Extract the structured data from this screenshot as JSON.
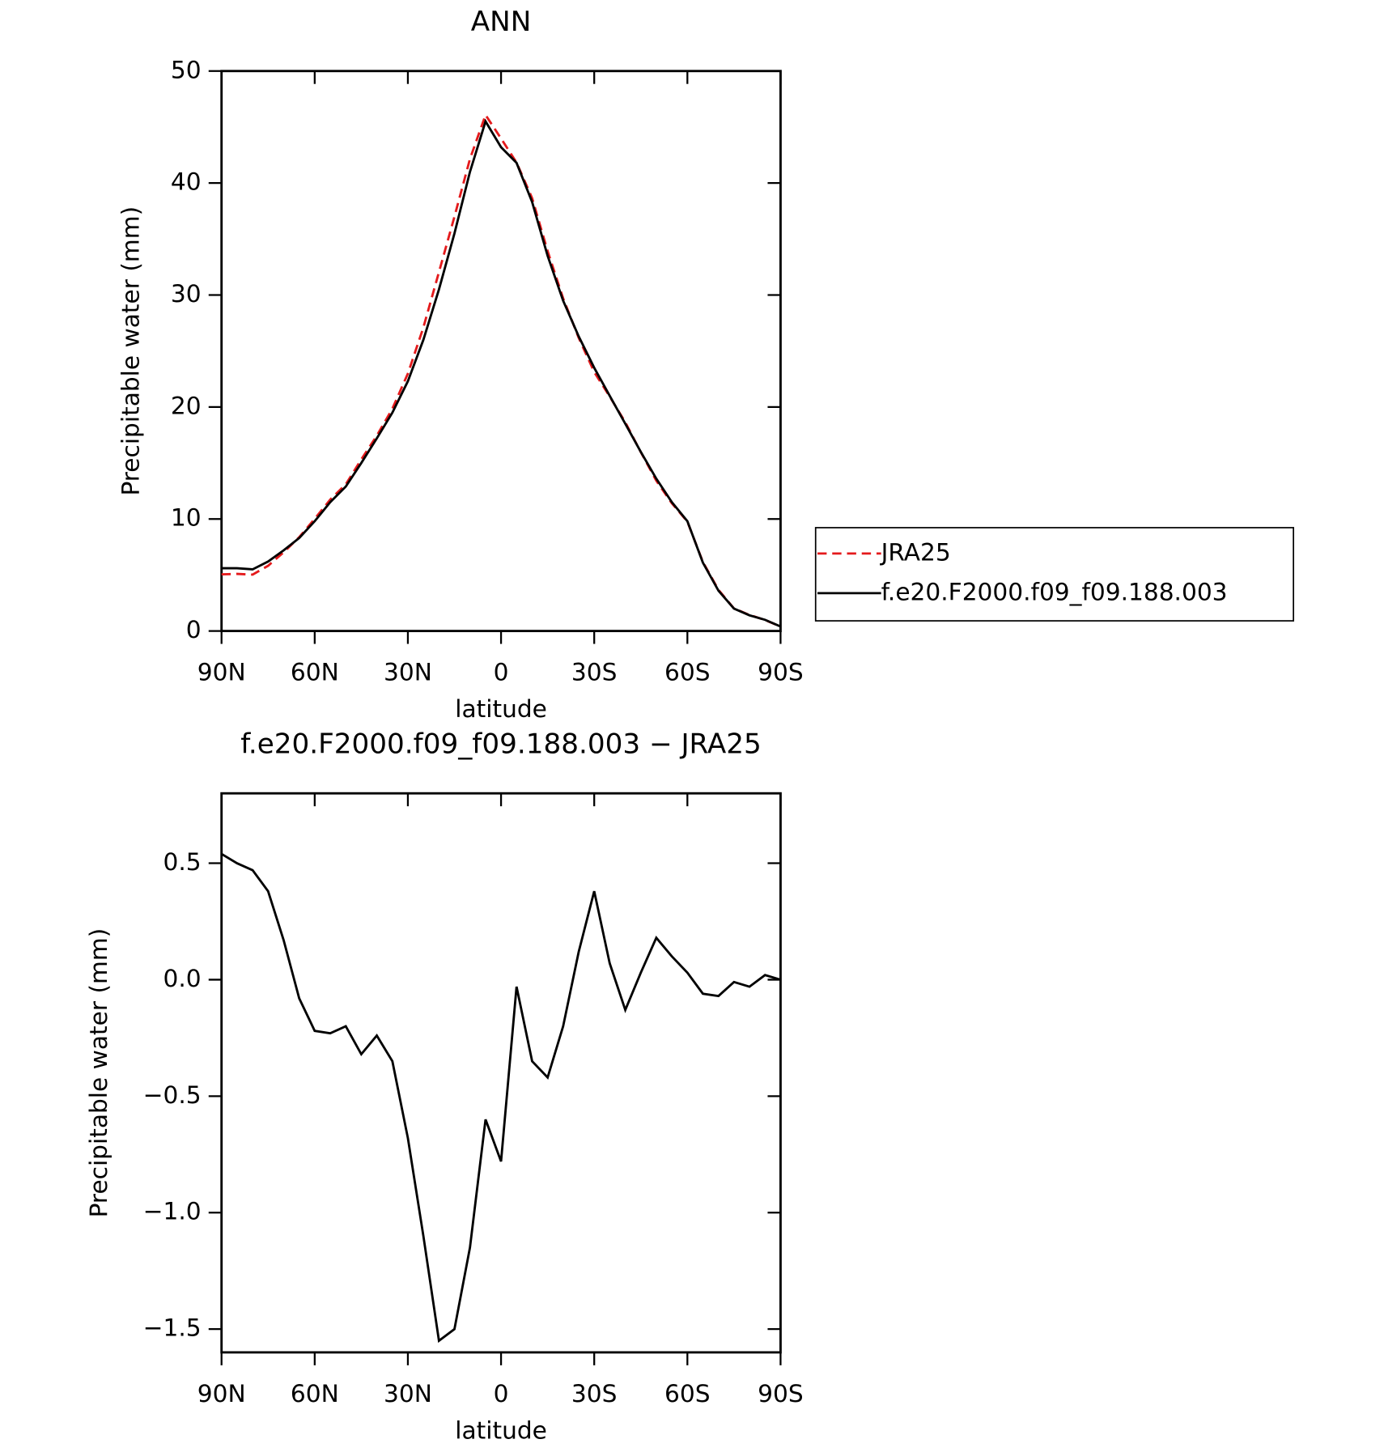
{
  "chart_data": [
    {
      "type": "line",
      "title": "ANN",
      "xlabel": "latitude",
      "ylabel": "Precipitable water (mm)",
      "x": [
        90,
        85,
        80,
        75,
        70,
        65,
        60,
        55,
        50,
        45,
        40,
        35,
        30,
        25,
        20,
        15,
        10,
        5,
        0,
        -5,
        -10,
        -15,
        -20,
        -25,
        -30,
        -35,
        -40,
        -45,
        -50,
        -55,
        -60,
        -65,
        -70,
        -75,
        -80,
        -85,
        -90
      ],
      "xlim": [
        90,
        -90
      ],
      "xticks": [
        {
          "value": 90,
          "label": "90N"
        },
        {
          "value": 60,
          "label": "60N"
        },
        {
          "value": 30,
          "label": "30N"
        },
        0,
        {
          "value": -30,
          "label": "30S"
        },
        {
          "value": -60,
          "label": "60S"
        },
        {
          "value": -90,
          "label": "90S"
        }
      ],
      "ylim": [
        0,
        50
      ],
      "yticks": [
        0,
        10,
        20,
        30,
        40,
        50
      ],
      "legend": "right",
      "series": [
        {
          "name": "JRA25",
          "color": "#e41a1c",
          "style": "dashed",
          "values": [
            5.06,
            5.1,
            5.03,
            5.82,
            7.03,
            8.38,
            10.02,
            11.73,
            13.1,
            15.32,
            17.44,
            19.85,
            22.98,
            27.1,
            32.05,
            37.0,
            42.15,
            46.08,
            43.98,
            41.83,
            38.65,
            33.92,
            29.7,
            26.18,
            23.12,
            20.93,
            18.63,
            15.97,
            13.42,
            11.4,
            9.77,
            6.16,
            3.67,
            2.01,
            1.43,
            0.98,
            0.4
          ]
        },
        {
          "name": "f.e20.F2000.f09_f09.188.003",
          "color": "#000000",
          "style": "solid",
          "values": [
            5.6,
            5.6,
            5.5,
            6.2,
            7.2,
            8.3,
            9.8,
            11.5,
            12.9,
            15,
            17.2,
            19.5,
            22.3,
            26.0,
            30.5,
            35.5,
            41,
            45.5,
            43.2,
            41.8,
            38.3,
            33.5,
            29.5,
            26.3,
            23.5,
            21,
            18.5,
            16,
            13.6,
            11.5,
            9.8,
            6.1,
            3.6,
            2.0,
            1.4,
            1.0,
            0.4
          ]
        }
      ]
    },
    {
      "type": "line",
      "title": "f.e20.F2000.f09_f09.188.003 − JRA25",
      "xlabel": "latitude",
      "ylabel": "Precipitable water (mm)",
      "x": [
        90,
        85,
        80,
        75,
        70,
        65,
        60,
        55,
        50,
        45,
        40,
        35,
        30,
        25,
        20,
        15,
        10,
        5,
        0,
        -5,
        -10,
        -15,
        -20,
        -25,
        -30,
        -35,
        -40,
        -45,
        -50,
        -55,
        -60,
        -65,
        -70,
        -75,
        -80,
        -85,
        -90
      ],
      "xlim": [
        90,
        -90
      ],
      "xticks": [
        {
          "value": 90,
          "label": "90N"
        },
        {
          "value": 60,
          "label": "60N"
        },
        {
          "value": 30,
          "label": "30N"
        },
        0,
        {
          "value": -30,
          "label": "30S"
        },
        {
          "value": -60,
          "label": "60S"
        },
        {
          "value": -90,
          "label": "90S"
        }
      ],
      "ylim": [
        -1.6,
        0.8
      ],
      "yticks": [
        {
          "value": 0.5,
          "label": "0.5"
        },
        {
          "value": 0,
          "label": "0.0"
        },
        {
          "value": -0.5,
          "label": "−0.5"
        },
        {
          "value": -1,
          "label": "−1.0"
        },
        {
          "value": -1.5,
          "label": "−1.5"
        }
      ],
      "series": [
        {
          "color": "#000000",
          "style": "solid",
          "values": [
            0.54,
            0.5,
            0.47,
            0.38,
            0.17,
            -0.08,
            -0.22,
            -0.23,
            -0.2,
            -0.32,
            -0.24,
            -0.35,
            -0.68,
            -1.1,
            -1.55,
            -1.5,
            -1.15,
            -0.6,
            -0.78,
            -0.03,
            -0.35,
            -0.42,
            -0.2,
            0.12,
            0.38,
            0.07,
            -0.13,
            0.03,
            0.18,
            0.1,
            0.03,
            -0.06,
            -0.07,
            -0.01,
            -0.03,
            0.02,
            0.0
          ]
        }
      ]
    }
  ]
}
